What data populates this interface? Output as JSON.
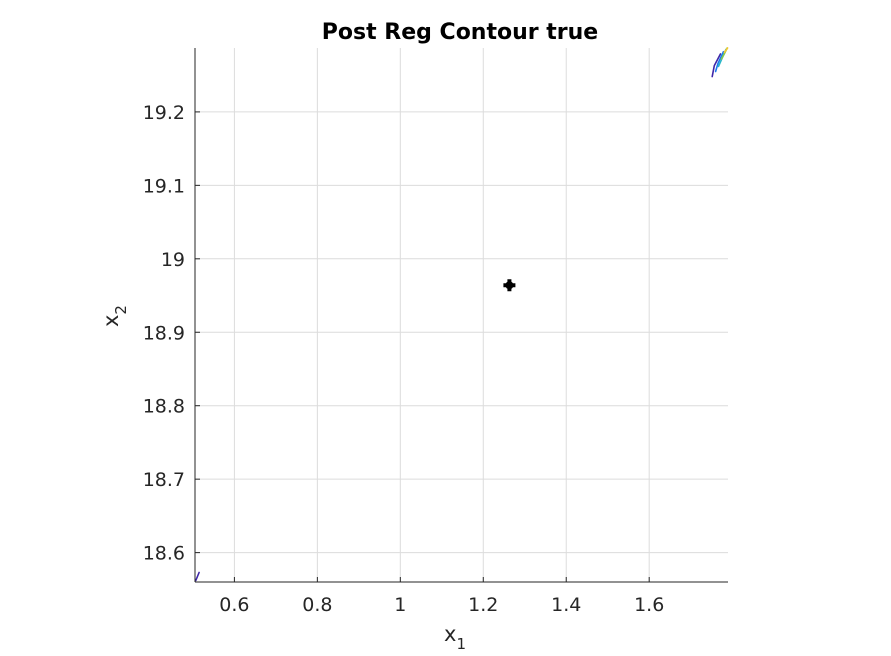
{
  "chart_data": {
    "type": "contour",
    "title": "Post Reg Contour true",
    "xlabel": {
      "base": "x",
      "sub": "1"
    },
    "ylabel": {
      "base": "x",
      "sub": "2"
    },
    "xlim": [
      0.505,
      1.79
    ],
    "ylim": [
      18.56,
      19.287
    ],
    "xticks": [
      0.6,
      0.8,
      1.0,
      1.2,
      1.4,
      1.6
    ],
    "xtick_labels": [
      "0.6",
      "0.8",
      "1",
      "1.2",
      "1.4",
      "1.6"
    ],
    "yticks": [
      18.6,
      18.7,
      18.8,
      18.9,
      19.0,
      19.1,
      19.2
    ],
    "ytick_labels": [
      "18.6",
      "18.7",
      "18.8",
      "18.9",
      "19",
      "19.1",
      "19.2"
    ],
    "grid": true,
    "marker": {
      "x": 1.263,
      "y": 18.964,
      "shape": "plus",
      "color": "#000000"
    },
    "contour_lines": [
      {
        "color": "#3e26a8",
        "points": [
          [
            1.752,
            19.248
          ],
          [
            1.757,
            19.263
          ],
          [
            1.772,
            19.279
          ]
        ]
      },
      {
        "color": "#1c7aef",
        "points": [
          [
            1.76,
            19.255
          ],
          [
            1.766,
            19.266
          ],
          [
            1.779,
            19.282
          ]
        ]
      },
      {
        "color": "#2ab7c7",
        "points": [
          [
            1.767,
            19.262
          ],
          [
            1.774,
            19.271
          ],
          [
            1.785,
            19.285
          ]
        ]
      },
      {
        "color": "#86c84a",
        "points": [
          [
            1.774,
            19.272
          ],
          [
            1.781,
            19.279
          ],
          [
            1.788,
            19.287
          ]
        ]
      },
      {
        "color": "#f4c72e",
        "points": [
          [
            1.781,
            19.281
          ],
          [
            1.789,
            19.287
          ]
        ]
      },
      {
        "color": "#3e26a8",
        "points": [
          [
            0.507,
            18.562
          ],
          [
            0.515,
            18.573
          ]
        ]
      }
    ]
  }
}
